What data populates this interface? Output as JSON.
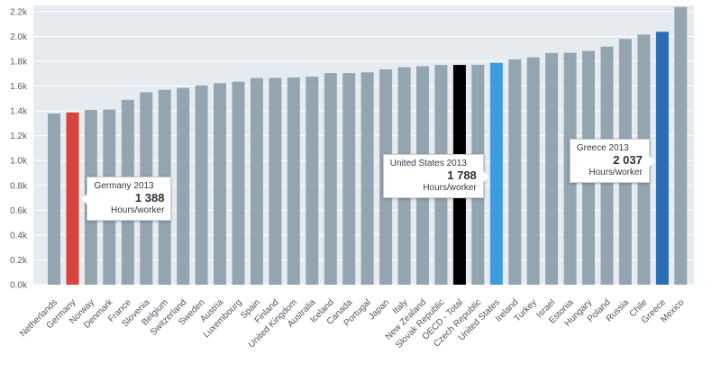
{
  "chart_data": {
    "type": "bar",
    "title": "",
    "xlabel": "",
    "ylabel": "",
    "ylim": [
      0,
      2250
    ],
    "yticks": [
      0,
      200,
      400,
      600,
      800,
      1000,
      1200,
      1400,
      1600,
      1800,
      2000,
      2200
    ],
    "ytick_labels": [
      "0.0k",
      "0.2k",
      "0.4k",
      "0.6k",
      "0.8k",
      "1.0k",
      "1.2k",
      "1.4k",
      "1.6k",
      "1.8k",
      "2.0k",
      "2.2k"
    ],
    "grid": true,
    "categories": [
      "Netherlands",
      "Germany",
      "Norway",
      "Denmark",
      "France",
      "Slovenia",
      "Belgium",
      "Switzerland",
      "Sweden",
      "Austria",
      "Luxembourg",
      "Spain",
      "Finland",
      "United Kingdom",
      "Australia",
      "Iceland",
      "Canada",
      "Portugal",
      "Japan",
      "Italy",
      "New Zealand",
      "Slovak Republic",
      "OECD - Total",
      "Czech Republic",
      "United States",
      "Ireland",
      "Turkey",
      "Israel",
      "Estonia",
      "Hungary",
      "Poland",
      "Russia",
      "Chile",
      "Greece",
      "Mexico"
    ],
    "values": [
      1380,
      1388,
      1408,
      1411,
      1489,
      1550,
      1570,
      1585,
      1605,
      1623,
      1635,
      1665,
      1666,
      1669,
      1676,
      1704,
      1704,
      1711,
      1735,
      1752,
      1760,
      1770,
      1770,
      1772,
      1788,
      1815,
      1832,
      1867,
      1868,
      1883,
      1918,
      1980,
      2015,
      2037,
      2237
    ],
    "highlights": [
      {
        "category": "Germany",
        "role": "red"
      },
      {
        "category": "OECD - Total",
        "role": "black"
      },
      {
        "category": "United States",
        "role": "lightblue"
      },
      {
        "category": "Greece",
        "role": "blue"
      }
    ],
    "colors": {
      "plot_bg": "#e6ebf0",
      "grid": "#ffffff",
      "bar": "#93a5b1",
      "red": "#d9433d",
      "black": "#000000",
      "lightblue": "#3d9be0",
      "blue": "#2a6db2",
      "label_default": "#4a5560"
    },
    "annotations": [
      {
        "category": "Germany",
        "title": "Germany 2013",
        "value": "1 388",
        "unit": "Hours/worker",
        "side": "right"
      },
      {
        "category": "United States",
        "title": "United States 2013",
        "value": "1 788",
        "unit": "Hours/worker",
        "side": "left"
      },
      {
        "category": "Greece",
        "title": "Greece 2013",
        "value": "2 037",
        "unit": "Hours/worker",
        "side": "left"
      }
    ]
  }
}
